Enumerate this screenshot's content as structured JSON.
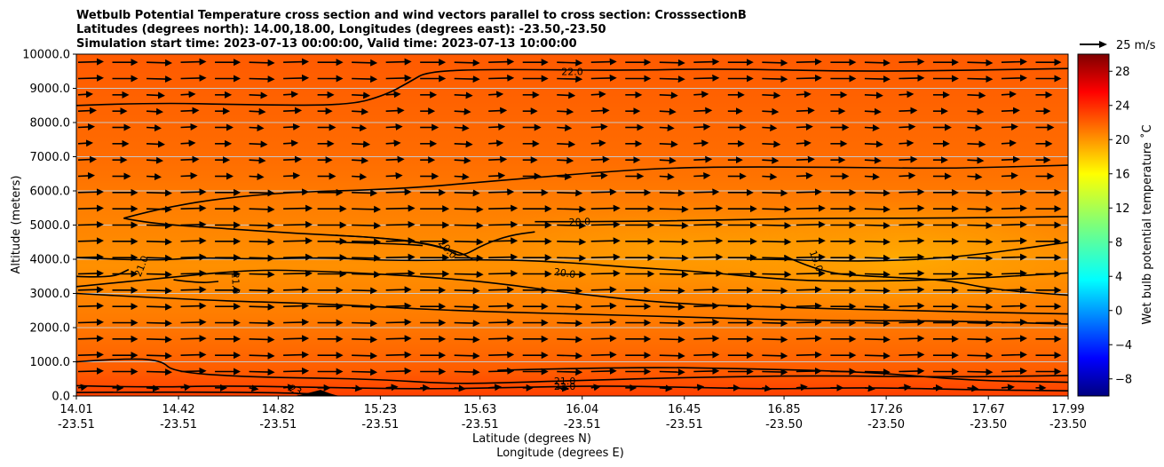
{
  "chart_data": {
    "type": "contour",
    "title_lines": [
      "Wetbulb Potential Temperature cross section and wind vectors parallel to cross section: CrosssectionB",
      "Latitudes (degrees north): 14.00,18.00, Longitudes (degrees east): -23.50,-23.50",
      "Simulation start time: 2023-07-13 00:00:00, Valid time: 2023-07-13 10:00:00"
    ],
    "ylabel": "Altitude (meters)",
    "xlabel_lines": [
      "Latitude (degrees N)",
      "Longitude (degrees E)"
    ],
    "ylim": [
      0,
      10000
    ],
    "yticks": [
      "0.0",
      "1000.0",
      "2000.0",
      "3000.0",
      "4000.0",
      "5000.0",
      "6000.0",
      "7000.0",
      "8000.0",
      "9000.0",
      "10000.0"
    ],
    "ytick_values": [
      0,
      1000,
      2000,
      3000,
      4000,
      5000,
      6000,
      7000,
      8000,
      9000,
      10000
    ],
    "xlim": [
      14.01,
      17.99
    ],
    "xtick_values": [
      14.01,
      14.42,
      14.82,
      15.23,
      15.63,
      16.04,
      16.45,
      16.85,
      17.26,
      17.67,
      17.99
    ],
    "xticks": [
      {
        "lat": "14.01",
        "lon": "-23.51"
      },
      {
        "lat": "14.42",
        "lon": "-23.51"
      },
      {
        "lat": "14.82",
        "lon": "-23.51"
      },
      {
        "lat": "15.23",
        "lon": "-23.51"
      },
      {
        "lat": "15.63",
        "lon": "-23.51"
      },
      {
        "lat": "16.04",
        "lon": "-23.51"
      },
      {
        "lat": "16.45",
        "lon": "-23.51"
      },
      {
        "lat": "16.85",
        "lon": "-23.50"
      },
      {
        "lat": "17.26",
        "lon": "-23.50"
      },
      {
        "lat": "17.67",
        "lon": "-23.50"
      },
      {
        "lat": "17.99",
        "lon": "-23.50"
      }
    ],
    "grid": "horizontal",
    "colorbar": {
      "label": "Wet bulb potential temperature ˚C",
      "range": [
        -10,
        30
      ],
      "ticks": [
        "−8",
        "−4",
        "0",
        "4",
        "8",
        "12",
        "16",
        "20",
        "24",
        "28"
      ],
      "tick_values": [
        -8,
        -4,
        0,
        4,
        8,
        12,
        16,
        20,
        24,
        28
      ],
      "colormap": "jet"
    },
    "quiver_key": {
      "label": "25 m/s",
      "speed": 25
    },
    "contour_levels": [
      19.0,
      20.0,
      21.0,
      22.0,
      23.0
    ],
    "contour_labels": [
      {
        "text": "22.0",
        "lat": 16.0,
        "alt": 9500,
        "angle": 0
      },
      {
        "text": "20.0",
        "lat": 16.03,
        "alt": 5100,
        "angle": -2
      },
      {
        "text": "20.0",
        "lat": 15.5,
        "alt": 4300,
        "angle": 48
      },
      {
        "text": "20.0",
        "lat": 15.97,
        "alt": 3600,
        "angle": 8
      },
      {
        "text": "21.0",
        "lat": 14.27,
        "alt": 3800,
        "angle": -68
      },
      {
        "text": "21.0",
        "lat": 14.65,
        "alt": 3300,
        "angle": 88
      },
      {
        "text": "19.0",
        "lat": 16.98,
        "alt": 3950,
        "angle": 70
      },
      {
        "text": "21.0",
        "lat": 15.97,
        "alt": 440,
        "angle": 0
      },
      {
        "text": "22.0",
        "lat": 15.97,
        "alt": 290,
        "angle": 0
      },
      {
        "text": "23",
        "lat": 14.89,
        "alt": 180,
        "angle": 22
      }
    ],
    "contour_lines": [
      {
        "level": 22,
        "points": [
          [
            14.01,
            8500
          ],
          [
            14.3,
            8580
          ],
          [
            14.7,
            8520
          ],
          [
            15.1,
            8500
          ],
          [
            15.25,
            8800
          ],
          [
            15.35,
            9200
          ],
          [
            15.42,
            9500
          ],
          [
            15.7,
            9560
          ],
          [
            16.2,
            9520
          ],
          [
            16.6,
            9580
          ],
          [
            17.2,
            9480
          ],
          [
            17.99,
            9580
          ]
        ]
      },
      {
        "level": 21,
        "points": [
          [
            14.01,
            4050
          ],
          [
            14.3,
            3950
          ],
          [
            14.5,
            4050
          ],
          [
            14.75,
            4000
          ],
          [
            15.0,
            4050
          ],
          [
            15.3,
            3950
          ],
          [
            15.7,
            4000
          ],
          [
            16.0,
            3900
          ],
          [
            16.2,
            3780
          ],
          [
            16.5,
            3650
          ],
          [
            16.85,
            3400
          ],
          [
            17.1,
            3350
          ],
          [
            17.5,
            3400
          ],
          [
            17.99,
            3600
          ]
        ]
      },
      {
        "level": 21,
        "points": [
          [
            14.2,
            5200
          ],
          [
            14.4,
            5600
          ],
          [
            14.8,
            5950
          ],
          [
            15.3,
            6050
          ],
          [
            15.7,
            6300
          ],
          [
            16.2,
            6600
          ],
          [
            16.5,
            6700
          ],
          [
            17.0,
            6700
          ],
          [
            17.5,
            6650
          ],
          [
            17.99,
            6750
          ]
        ]
      },
      {
        "level": 21,
        "points": [
          [
            14.2,
            5200
          ],
          [
            14.3,
            5050
          ],
          [
            14.6,
            4900
          ],
          [
            14.9,
            4750
          ],
          [
            15.2,
            4650
          ],
          [
            15.4,
            4500
          ],
          [
            15.55,
            4200
          ],
          [
            15.6,
            4000
          ]
        ]
      },
      {
        "level": 20,
        "points": [
          [
            15.85,
            5100
          ],
          [
            16.2,
            5100
          ],
          [
            16.6,
            5150
          ],
          [
            17.0,
            5200
          ],
          [
            17.5,
            5200
          ],
          [
            17.99,
            5250
          ]
        ]
      },
      {
        "level": 20,
        "points": [
          [
            15.05,
            4700
          ],
          [
            15.2,
            4650
          ],
          [
            15.38,
            4500
          ],
          [
            15.5,
            4300
          ],
          [
            15.55,
            4050
          ],
          [
            15.65,
            4450
          ],
          [
            15.75,
            4700
          ],
          [
            15.85,
            4800
          ]
        ]
      },
      {
        "level": 20,
        "points": [
          [
            15.05,
            4500
          ],
          [
            15.3,
            4450
          ],
          [
            15.4,
            4400
          ]
        ]
      },
      {
        "level": 20,
        "points": [
          [
            14.01,
            3500
          ],
          [
            14.15,
            3450
          ],
          [
            14.22,
            3700
          ]
        ]
      },
      {
        "level": 20,
        "points": [
          [
            14.4,
            3400
          ],
          [
            14.5,
            3300
          ],
          [
            14.58,
            3350
          ]
        ]
      },
      {
        "level": 20,
        "points": [
          [
            14.01,
            3200
          ],
          [
            14.3,
            3400
          ],
          [
            14.7,
            3700
          ],
          [
            15.0,
            3650
          ],
          [
            15.4,
            3500
          ],
          [
            15.7,
            3300
          ],
          [
            16.0,
            3000
          ],
          [
            16.4,
            2700
          ],
          [
            16.8,
            2600
          ],
          [
            17.3,
            2500
          ],
          [
            17.99,
            2400
          ]
        ]
      },
      {
        "level": 19,
        "points": [
          [
            16.7,
            4000
          ],
          [
            16.85,
            4000
          ],
          [
            17.0,
            3950
          ],
          [
            17.3,
            3950
          ],
          [
            17.6,
            4100
          ],
          [
            17.99,
            4500
          ]
        ]
      },
      {
        "level": 19,
        "points": [
          [
            16.85,
            4100
          ],
          [
            17.0,
            3600
          ],
          [
            17.2,
            3500
          ],
          [
            17.5,
            3400
          ],
          [
            17.7,
            3100
          ],
          [
            17.99,
            2950
          ]
        ]
      },
      {
        "level": 20,
        "points": [
          [
            14.01,
            3000
          ],
          [
            14.5,
            2800
          ],
          [
            15.0,
            2700
          ],
          [
            15.5,
            2500
          ],
          [
            16.0,
            2400
          ],
          [
            16.5,
            2300
          ],
          [
            17.0,
            2200
          ],
          [
            17.5,
            2200
          ],
          [
            17.99,
            2100
          ]
        ]
      },
      {
        "level": 21,
        "points": [
          [
            14.01,
            1000
          ],
          [
            14.2,
            1100
          ],
          [
            14.35,
            1050
          ],
          [
            14.4,
            700
          ],
          [
            14.7,
            550
          ],
          [
            15.2,
            500
          ],
          [
            15.5,
            350
          ],
          [
            15.8,
            400
          ],
          [
            16.0,
            450
          ],
          [
            16.5,
            550
          ],
          [
            17.0,
            600
          ],
          [
            17.5,
            550
          ],
          [
            17.99,
            600
          ]
        ]
      },
      {
        "level": 22,
        "points": [
          [
            15.7,
            750
          ],
          [
            16.2,
            850
          ],
          [
            16.7,
            800
          ],
          [
            17.2,
            700
          ],
          [
            17.6,
            450
          ],
          [
            17.99,
            400
          ]
        ]
      },
      {
        "level": 22,
        "points": [
          [
            14.01,
            300
          ],
          [
            14.3,
            250
          ],
          [
            14.6,
            300
          ],
          [
            15.0,
            250
          ],
          [
            15.4,
            200
          ],
          [
            15.8,
            250
          ],
          [
            16.1,
            300
          ],
          [
            16.5,
            250
          ],
          [
            16.8,
            200
          ],
          [
            17.2,
            250
          ],
          [
            17.6,
            180
          ],
          [
            17.99,
            150
          ]
        ]
      },
      {
        "level": 23,
        "points": [
          [
            14.01,
            100
          ],
          [
            14.4,
            120
          ],
          [
            14.8,
            100
          ],
          [
            15.0,
            50
          ]
        ]
      }
    ],
    "terrain": {
      "lat_range": [
        14.88,
        15.07
      ],
      "peak_lat": 14.99,
      "peak_alt": 180
    },
    "wind_vectors": {
      "direction": "left-to-right",
      "columns": 29,
      "rows": 21,
      "typical_speed": 25
    }
  }
}
